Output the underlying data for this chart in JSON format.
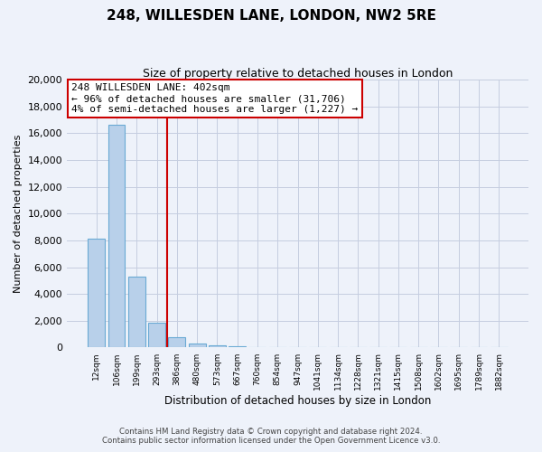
{
  "title": "248, WILLESDEN LANE, LONDON, NW2 5RE",
  "subtitle": "Size of property relative to detached houses in London",
  "xlabel": "Distribution of detached houses by size in London",
  "ylabel": "Number of detached properties",
  "bar_labels": [
    "12sqm",
    "106sqm",
    "199sqm",
    "293sqm",
    "386sqm",
    "480sqm",
    "573sqm",
    "667sqm",
    "760sqm",
    "854sqm",
    "947sqm",
    "1041sqm",
    "1134sqm",
    "1228sqm",
    "1321sqm",
    "1415sqm",
    "1508sqm",
    "1602sqm",
    "1695sqm",
    "1789sqm",
    "1882sqm"
  ],
  "bar_values": [
    8100,
    16600,
    5300,
    1850,
    750,
    300,
    150,
    100,
    50,
    0,
    0,
    0,
    0,
    0,
    0,
    0,
    0,
    0,
    0,
    0,
    0
  ],
  "bar_color": "#b8d0ea",
  "bar_edge_color": "#6aaad4",
  "vline_x_index": 3.5,
  "vline_color": "#cc0000",
  "annotation_line1": "248 WILLESDEN LANE: 402sqm",
  "annotation_line2": "← 96% of detached houses are smaller (31,706)",
  "annotation_line3": "4% of semi-detached houses are larger (1,227) →",
  "annotation_box_color": "#ffffff",
  "annotation_box_edge_color": "#cc0000",
  "ylim": [
    0,
    20000
  ],
  "yticks": [
    0,
    2000,
    4000,
    6000,
    8000,
    10000,
    12000,
    14000,
    16000,
    18000,
    20000
  ],
  "background_color": "#eef2fa",
  "grid_color": "#c5cde0",
  "footer_line1": "Contains HM Land Registry data © Crown copyright and database right 2024.",
  "footer_line2": "Contains public sector information licensed under the Open Government Licence v3.0."
}
